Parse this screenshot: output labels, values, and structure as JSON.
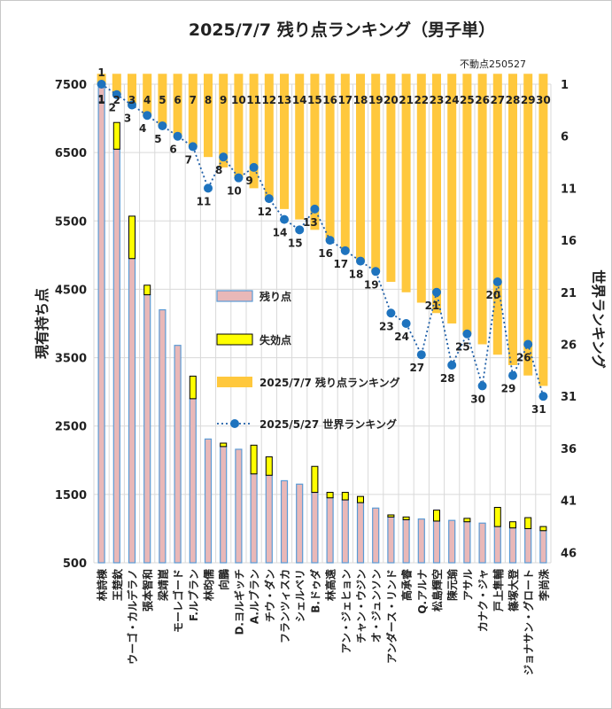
{
  "chart_data": {
    "type": "bar",
    "title": "2025/7/7 残り点ランキング（男子単）",
    "note": "不動点250527",
    "ylabel": "現有持ち点",
    "y2label": "世界ランキング",
    "ylim": [
      500,
      7500
    ],
    "yticks": [
      "500",
      "1500",
      "2500",
      "3500",
      "4500",
      "5500",
      "6500",
      "7500"
    ],
    "y2lim": [
      1,
      47
    ],
    "y2ticks": [
      "1",
      "6",
      "11",
      "16",
      "21",
      "26",
      "31",
      "36",
      "41",
      "46"
    ],
    "categories": [
      "林詩棟",
      "王楚欽",
      "ウーゴ・カルデラノ",
      "張本智和",
      "梁靖崑",
      "モーレゴード",
      "F.ルブラン",
      "林昀儒",
      "向鵬",
      "D.ヨルギッチ",
      "A.ルブラン",
      "チウ・ダン",
      "フランツィスカ",
      "シェルベリ",
      "B.ドゥダ",
      "林高遠",
      "アン・ジェヒョン",
      "チャン・ウジン",
      "オ・ジュンソン",
      "アンダース・リンド",
      "高承睿",
      "Q.アルナ",
      "松島輝空",
      "陳元瑜",
      "アサル",
      "カナク・ジャ",
      "戸上隼輔",
      "篠塚大登",
      "ジョナサン・グロート",
      "李尚洙"
    ],
    "legend": [
      "残り点",
      "失効点",
      "2025/7/7 残り点ランキング",
      "2025/5/27 世界ランキング"
    ],
    "series": [
      {
        "name": "残り点",
        "values": [
          7500,
          6550,
          4950,
          4420,
          4200,
          3680,
          2900,
          2310,
          2200,
          2160,
          1800,
          1780,
          1700,
          1650,
          1530,
          1450,
          1420,
          1380,
          1300,
          1170,
          1130,
          1140,
          1110,
          1120,
          1100,
          1080,
          1030,
          1010,
          1000,
          970
        ]
      },
      {
        "name": "失効点",
        "values": [
          0,
          390,
          620,
          140,
          0,
          0,
          330,
          0,
          50,
          0,
          420,
          270,
          0,
          0,
          380,
          80,
          110,
          90,
          0,
          30,
          40,
          0,
          160,
          0,
          50,
          0,
          280,
          90,
          160,
          60
        ]
      },
      {
        "name": "2025/7/7 残り点ランキング",
        "values": [
          1,
          2,
          3,
          4,
          5,
          6,
          7,
          8,
          9,
          10,
          11,
          12,
          13,
          14,
          15,
          16,
          17,
          18,
          19,
          20,
          21,
          22,
          23,
          24,
          25,
          26,
          27,
          28,
          29,
          30
        ]
      },
      {
        "name": "2025/5/27 世界ランキング",
        "values": [
          1,
          2,
          3,
          4,
          5,
          6,
          7,
          11,
          8,
          10,
          9,
          12,
          14,
          15,
          13,
          16,
          17,
          18,
          19,
          23,
          24,
          27,
          21,
          28,
          25,
          30,
          20,
          29,
          26,
          31
        ]
      }
    ],
    "colors": {
      "remain_fill": "#e9b8b8",
      "remain_stroke": "#5b9bd5",
      "expire_fill": "#ffff00",
      "expire_stroke": "#000000",
      "rank_bar": "#ffc83d",
      "line": "#1f5fa8",
      "marker": "#1e73be",
      "grid": "#d9d9d9",
      "axis_text": "#333333"
    }
  }
}
